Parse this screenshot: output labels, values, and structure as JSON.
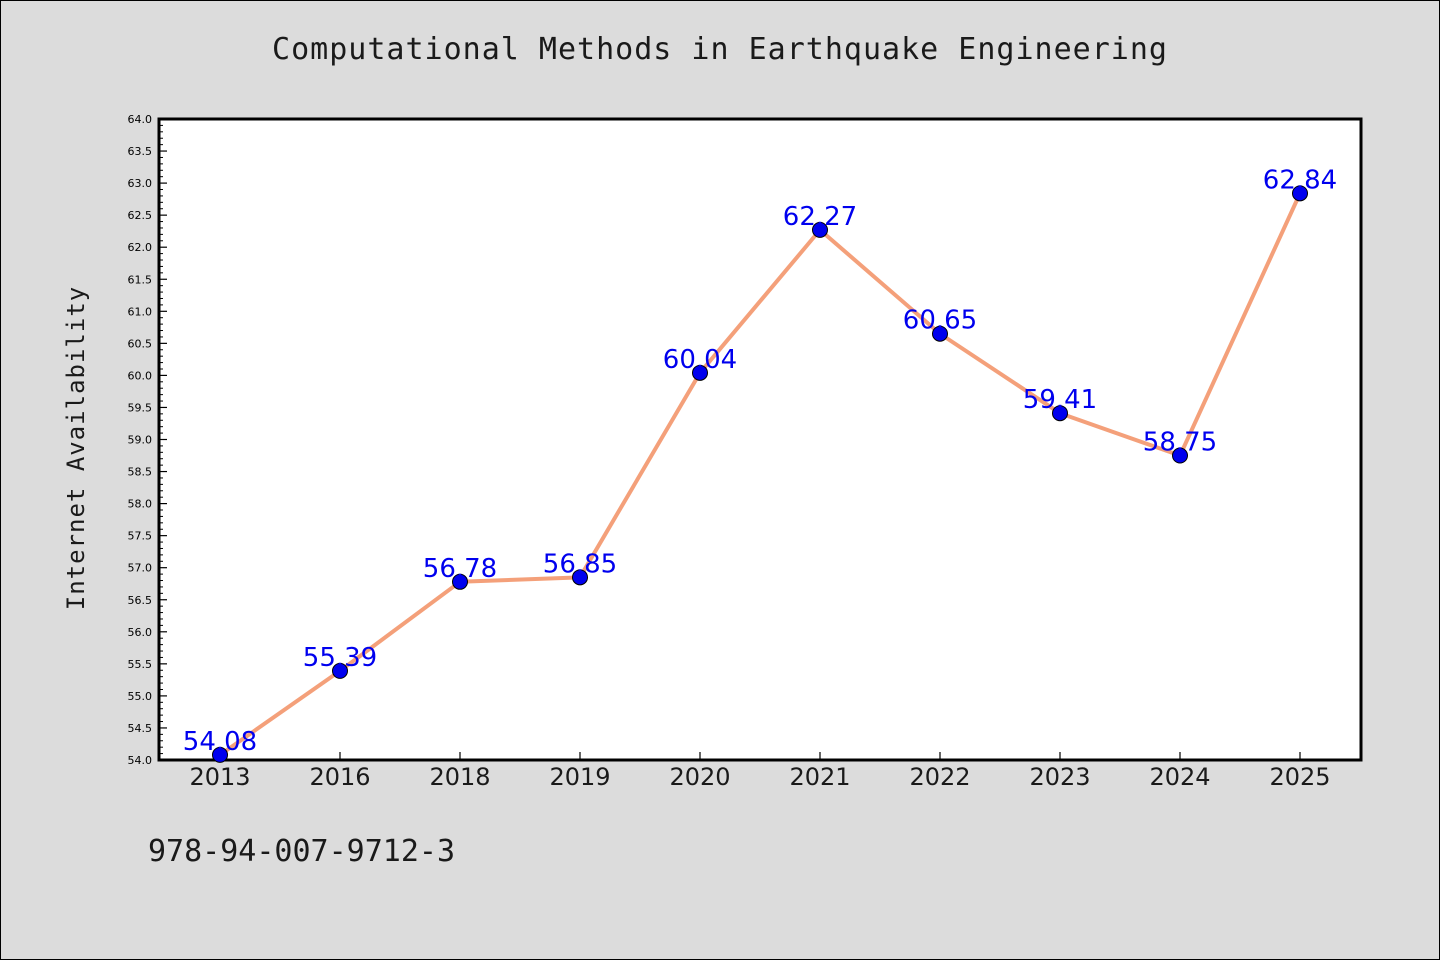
{
  "chart_data": {
    "type": "line",
    "title": "Computational Methods in Earthquake Engineering",
    "xlabel": "",
    "ylabel": "Internet Availability",
    "categories": [
      "2013",
      "2016",
      "2018",
      "2019",
      "2020",
      "2021",
      "2022",
      "2023",
      "2024",
      "2025"
    ],
    "values": [
      54.08,
      55.39,
      56.78,
      56.85,
      60.04,
      62.27,
      60.65,
      59.41,
      58.75,
      62.84
    ],
    "data_labels": [
      "54.08",
      "55.39",
      "56.78",
      "56.85",
      "60.04",
      "62.27",
      "60.65",
      "59.41",
      "58.75",
      "62.84"
    ],
    "ylim": [
      54.0,
      64.0
    ],
    "yticks": [
      "54.0",
      "54.5",
      "55.0",
      "55.5",
      "56.0",
      "56.5",
      "57.0",
      "57.5",
      "58.0",
      "58.5",
      "59.0",
      "59.5",
      "60.0",
      "60.5",
      "61.0",
      "61.5",
      "62.0",
      "62.5",
      "63.0",
      "63.5",
      "64.0"
    ],
    "grid": false,
    "line_color": "#f4a07a",
    "marker_color": "#0000ee",
    "label_color": "#0000ee"
  },
  "footer": {
    "isbn": "978-94-007-9712-3"
  }
}
